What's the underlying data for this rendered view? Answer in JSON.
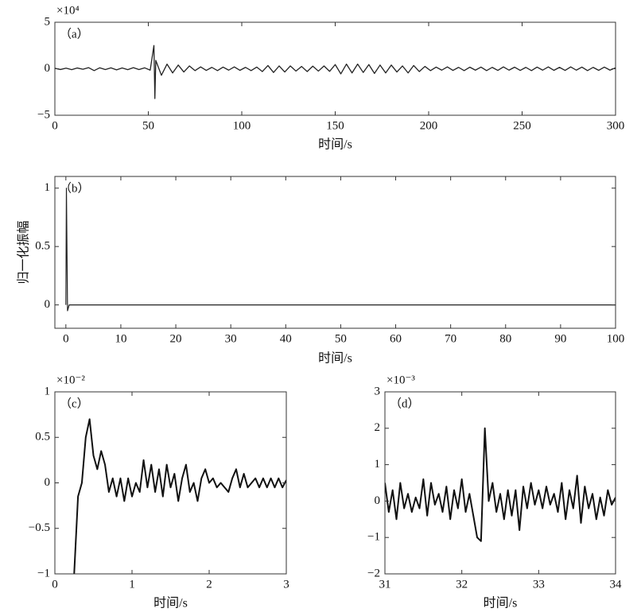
{
  "chart_data": [
    {
      "type": "line",
      "annotation": "（a）",
      "y_multiplier": "×10⁴",
      "xlabel": "时间/s",
      "color": "#222222",
      "xlim": [
        0,
        300
      ],
      "xticks": [
        0,
        50,
        100,
        150,
        200,
        250,
        300
      ],
      "ylim": [
        -5,
        5
      ],
      "yticks": [
        {
          "value": -5,
          "label": "−5"
        },
        0,
        5
      ],
      "x": [
        0,
        3,
        6,
        9,
        12,
        15,
        18,
        21,
        24,
        27,
        30,
        33,
        36,
        39,
        42,
        45,
        48,
        51,
        53,
        53.5,
        54,
        57,
        60,
        63,
        66,
        69,
        72,
        75,
        78,
        81,
        84,
        87,
        90,
        93,
        96,
        99,
        102,
        105,
        108,
        111,
        114,
        117,
        120,
        123,
        126,
        129,
        132,
        135,
        138,
        141,
        144,
        147,
        150,
        153,
        156,
        159,
        162,
        165,
        168,
        171,
        174,
        177,
        180,
        183,
        186,
        189,
        192,
        195,
        198,
        201,
        204,
        207,
        210,
        213,
        216,
        219,
        222,
        225,
        228,
        231,
        234,
        237,
        240,
        243,
        246,
        249,
        252,
        255,
        258,
        261,
        264,
        267,
        270,
        273,
        276,
        279,
        282,
        285,
        288,
        291,
        294,
        297,
        300
      ],
      "values": [
        0.05,
        -0.08,
        0.06,
        -0.1,
        0.08,
        -0.05,
        0.12,
        -0.2,
        0.1,
        -0.08,
        0.1,
        -0.12,
        0.09,
        -0.1,
        0.12,
        -0.09,
        0.1,
        -0.15,
        2.5,
        -3.2,
        0.9,
        -0.7,
        0.5,
        -0.45,
        0.4,
        -0.35,
        0.3,
        -0.2,
        0.2,
        -0.18,
        0.15,
        -0.2,
        0.18,
        -0.15,
        0.2,
        -0.17,
        0.15,
        -0.2,
        0.18,
        -0.3,
        0.35,
        -0.4,
        0.3,
        -0.35,
        0.3,
        -0.25,
        0.25,
        -0.3,
        0.28,
        -0.25,
        0.3,
        -0.28,
        0.45,
        -0.55,
        0.5,
        -0.45,
        0.5,
        -0.4,
        0.45,
        -0.5,
        0.4,
        -0.45,
        0.4,
        -0.35,
        0.3,
        -0.45,
        0.35,
        -0.3,
        0.25,
        -0.2,
        0.18,
        -0.15,
        0.2,
        -0.18,
        0.15,
        -0.2,
        0.17,
        -0.15,
        0.18,
        -0.2,
        0.15,
        -0.18,
        0.2,
        -0.15,
        0.17,
        -0.18,
        0.15,
        -0.2,
        0.18,
        -0.15,
        0.2,
        -0.17,
        0.15,
        -0.18,
        0.2,
        -0.15,
        0.18,
        -0.2,
        0.15,
        -0.17,
        0.18,
        -0.15,
        0.1
      ]
    },
    {
      "type": "line",
      "annotation": "（b）",
      "xlabel": "时间/s",
      "ylabel": "归一化振幅",
      "color": "#222222",
      "xlim": [
        -2,
        100
      ],
      "xticks": [
        0,
        10,
        20,
        30,
        40,
        50,
        60,
        70,
        80,
        90,
        100
      ],
      "ylim": [
        -0.2,
        1.1
      ],
      "yticks": [
        0,
        0.5,
        1
      ],
      "x": [
        0,
        0.1,
        0.3,
        0.6,
        1,
        100
      ],
      "values": [
        0,
        1,
        -0.05,
        0,
        0,
        0
      ]
    },
    {
      "type": "line",
      "annotation": "（c）",
      "y_multiplier": "×10⁻²",
      "xlabel": "时间/s",
      "color": "#111111",
      "xlim": [
        0,
        3
      ],
      "xticks": [
        0,
        1,
        2,
        3
      ],
      "ylim": [
        -1,
        1
      ],
      "yticks": [
        {
          "value": -1,
          "label": "−1"
        },
        {
          "value": -0.5,
          "label": "−0.5"
        },
        0,
        0.5,
        1
      ],
      "x": [
        0.25,
        0.3,
        0.35,
        0.4,
        0.45,
        0.5,
        0.55,
        0.6,
        0.65,
        0.7,
        0.75,
        0.8,
        0.85,
        0.9,
        0.95,
        1,
        1.05,
        1.1,
        1.15,
        1.2,
        1.25,
        1.3,
        1.35,
        1.4,
        1.45,
        1.5,
        1.55,
        1.6,
        1.65,
        1.7,
        1.75,
        1.8,
        1.85,
        1.9,
        1.95,
        2,
        2.05,
        2.1,
        2.15,
        2.2,
        2.25,
        2.3,
        2.35,
        2.4,
        2.45,
        2.5,
        2.55,
        2.6,
        2.65,
        2.7,
        2.75,
        2.8,
        2.85,
        2.9,
        2.95,
        3
      ],
      "values": [
        -1,
        -0.15,
        0,
        0.5,
        0.7,
        0.3,
        0.15,
        0.35,
        0.2,
        -0.1,
        0.05,
        -0.15,
        0.05,
        -0.2,
        0.05,
        -0.15,
        0,
        -0.1,
        0.25,
        -0.05,
        0.2,
        -0.1,
        0.15,
        -0.15,
        0.2,
        -0.05,
        0.1,
        -0.2,
        0.05,
        0.2,
        -0.1,
        0,
        -0.2,
        0.05,
        0.15,
        0,
        0.05,
        -0.05,
        0,
        -0.05,
        -0.1,
        0.05,
        0.15,
        -0.05,
        0.1,
        -0.05,
        0,
        0.05,
        -0.05,
        0.05,
        -0.05,
        0.05,
        -0.05,
        0.05,
        -0.05,
        0.03
      ]
    },
    {
      "type": "line",
      "annotation": "（d）",
      "y_multiplier": "×10⁻³",
      "xlabel": "时间/s",
      "color": "#111111",
      "xlim": [
        31,
        34
      ],
      "xticks": [
        31,
        32,
        33,
        34
      ],
      "ylim": [
        -2,
        3
      ],
      "yticks": [
        {
          "value": -2,
          "label": "−2"
        },
        {
          "value": -1,
          "label": "−1"
        },
        0,
        1,
        2,
        3
      ],
      "x": [
        31,
        31.05,
        31.1,
        31.15,
        31.2,
        31.25,
        31.3,
        31.35,
        31.4,
        31.45,
        31.5,
        31.55,
        31.6,
        31.65,
        31.7,
        31.75,
        31.8,
        31.85,
        31.9,
        31.95,
        32,
        32.05,
        32.1,
        32.15,
        32.2,
        32.25,
        32.3,
        32.35,
        32.4,
        32.45,
        32.5,
        32.55,
        32.6,
        32.65,
        32.7,
        32.75,
        32.8,
        32.85,
        32.9,
        32.95,
        33,
        33.05,
        33.1,
        33.15,
        33.2,
        33.25,
        33.3,
        33.35,
        33.4,
        33.45,
        33.5,
        33.55,
        33.6,
        33.65,
        33.7,
        33.75,
        33.8,
        33.85,
        33.9,
        33.95,
        34
      ],
      "values": [
        0.5,
        -0.3,
        0.3,
        -0.5,
        0.5,
        -0.2,
        0.2,
        -0.3,
        0.1,
        -0.2,
        0.6,
        -0.4,
        0.5,
        -0.1,
        0.2,
        -0.3,
        0.4,
        -0.5,
        0.3,
        -0.2,
        0.6,
        -0.3,
        0.2,
        -0.4,
        -1,
        -1.1,
        2,
        0,
        0.5,
        -0.3,
        0.2,
        -0.5,
        0.3,
        -0.4,
        0.3,
        -0.8,
        0.4,
        -0.2,
        0.5,
        -0.1,
        0.3,
        -0.2,
        0.4,
        -0.1,
        0.2,
        -0.3,
        0.5,
        -0.5,
        0.3,
        -0.2,
        0.7,
        -0.6,
        0.4,
        -0.2,
        0.2,
        -0.5,
        0.1,
        -0.4,
        0.3,
        -0.1,
        0.1
      ]
    }
  ]
}
